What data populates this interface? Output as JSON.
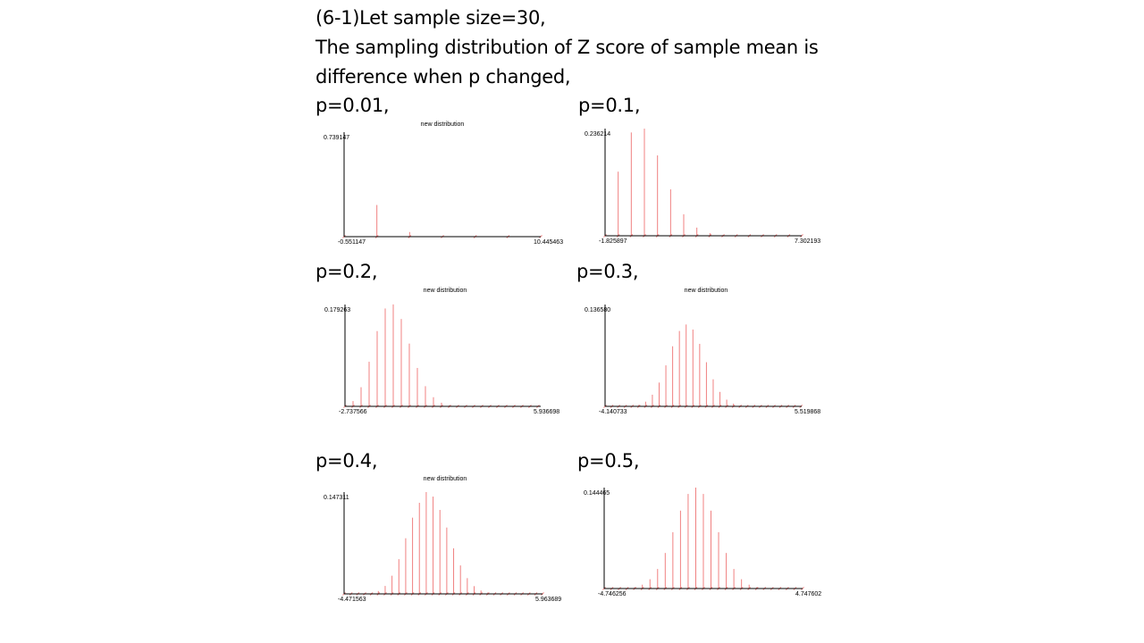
{
  "heading": {
    "line1": "(6-1)Let sample size=30,",
    "line2": "The sampling distribution of Z score of sample mean is",
    "line3": "difference when p changed,"
  },
  "colors": {
    "bar": "#f08080",
    "axis": "#000000"
  },
  "chart_data": [
    {
      "type": "bar",
      "label": "p=0.01,",
      "title": "new distribution",
      "xlim": [
        -0.551147,
        10.445463
      ],
      "ylim": [
        0,
        0.739147
      ],
      "x_min_label": "-0.551147",
      "x_max_label": "10.445463",
      "y_max_label": "0.739147",
      "x": [
        -0.551147,
        1.2816,
        3.1143,
        4.9471,
        6.7798,
        8.6125,
        10.4455
      ],
      "values": [
        0.7392,
        0.2241,
        0.0328,
        0.0031,
        0.0002,
        0.0,
        0.0
      ]
    },
    {
      "type": "bar",
      "label": "p=0.1,",
      "title": "",
      "xlim": [
        -1.825897,
        7.302193
      ],
      "ylim": [
        0,
        0.236214
      ],
      "x_min_label": "-1.825897",
      "x_max_label": "7.302193",
      "y_max_label": "0.236214",
      "x": [
        -1.8259,
        -1.2173,
        -0.6088,
        0.0,
        0.6088,
        1.2173,
        1.8259,
        2.4345,
        3.0431,
        3.6517,
        4.2603,
        4.8689,
        5.4775,
        6.0861,
        6.6947,
        7.3022
      ],
      "values": [
        0.0424,
        0.1413,
        0.2277,
        0.2361,
        0.1771,
        0.1023,
        0.0474,
        0.018,
        0.0058,
        0.0016,
        0.0004,
        0.0001,
        0.0,
        0.0,
        0.0,
        0.0
      ]
    },
    {
      "type": "bar",
      "label": "p=0.2,",
      "title": "new distribution",
      "xlim": [
        -2.737566,
        5.936698
      ],
      "ylim": [
        0,
        0.179263
      ],
      "x_min_label": "-2.737566",
      "x_max_label": "5.936698",
      "y_max_label": "0.179263",
      "x": [
        -2.7376,
        -2.3812,
        -2.0248,
        -1.6684,
        -1.312,
        -0.9556,
        -0.5992,
        -0.2428,
        0.1136,
        0.47,
        0.8264,
        1.1828,
        1.5392,
        1.8956,
        2.252,
        2.6084,
        2.9648,
        3.3212,
        3.6776,
        4.034,
        4.3904,
        4.7468,
        5.1032,
        5.4596,
        5.816
      ],
      "values": [
        0.0012,
        0.0093,
        0.0337,
        0.0785,
        0.1325,
        0.1723,
        0.1795,
        0.1538,
        0.1105,
        0.0676,
        0.0355,
        0.0161,
        0.0064,
        0.0022,
        0.0007,
        0.0002,
        0.0,
        0.0,
        0.0,
        0.0,
        0.0,
        0.0,
        0.0,
        0.0,
        0.0
      ]
    },
    {
      "type": "bar",
      "label": "p=0.3,",
      "title": "new distribution",
      "xlim": [
        -4.140733,
        5.519868
      ],
      "ylim": [
        0,
        0.13658
      ],
      "x_min_label": "-4.140733",
      "x_max_label": "5.519868",
      "y_max_label": "0.136580",
      "x": [
        -4.1407,
        -3.8087,
        -3.4767,
        -3.1447,
        -2.8127,
        -2.4807,
        -2.1487,
        -1.8167,
        -1.4847,
        -1.1527,
        -0.8207,
        -0.4887,
        -0.1567,
        0.1753,
        0.5073,
        0.8393,
        1.1713,
        1.5033,
        1.8353,
        2.1673,
        2.4993,
        2.8313,
        3.1633,
        3.4953,
        3.8273,
        4.1593,
        4.4913,
        4.8233,
        5.1553,
        5.4873
      ],
      "values": [
        0.0,
        0.0,
        0.0,
        0.0001,
        0.0005,
        0.002,
        0.0063,
        0.0156,
        0.0319,
        0.055,
        0.0806,
        0.1011,
        0.1098,
        0.103,
        0.0838,
        0.0592,
        0.0363,
        0.0194,
        0.009,
        0.0036,
        0.0012,
        0.0004,
        0.0001,
        0.0,
        0.0,
        0.0,
        0.0,
        0.0,
        0.0,
        0.0
      ]
    },
    {
      "type": "bar",
      "label": "p=0.4,",
      "title": "new distribution",
      "xlim": [
        -4.471563,
        5.963689
      ],
      "ylim": [
        0,
        0.147311
      ],
      "x_min_label": "-4.471563",
      "x_max_label": "5.963689",
      "y_max_label": "0.147311",
      "x": [
        -4.4716,
        -4.1116,
        -3.7516,
        -3.3916,
        -3.0316,
        -2.6716,
        -2.3116,
        -1.9516,
        -1.5916,
        -1.2316,
        -0.8716,
        -0.5116,
        -0.1516,
        0.2084,
        0.5684,
        0.9284,
        1.2884,
        1.6484,
        2.0084,
        2.3684,
        2.7284,
        3.0884,
        3.4484,
        3.8084,
        4.1684,
        4.5284,
        4.8884,
        5.2484,
        5.6084,
        5.9637
      ],
      "values": [
        0.0,
        0.0,
        0.0,
        0.0002,
        0.0012,
        0.0041,
        0.0115,
        0.0263,
        0.0502,
        0.0805,
        0.1103,
        0.1318,
        0.1473,
        0.1408,
        0.1215,
        0.096,
        0.0659,
        0.0412,
        0.0228,
        0.0112,
        0.0049,
        0.0019,
        0.0006,
        0.0002,
        0.0,
        0.0,
        0.0,
        0.0,
        0.0,
        0.0
      ]
    },
    {
      "type": "bar",
      "label": "p=0.5,",
      "title": "",
      "xlim": [
        -4.746256,
        4.747602
      ],
      "ylim": [
        0,
        0.144465
      ],
      "x_min_label": "-4.746256",
      "x_max_label": "4.747602",
      "y_max_label": "0.144465",
      "x": [
        -4.7463,
        -4.3811,
        -4.0159,
        -3.6507,
        -3.2855,
        -2.9203,
        -2.5551,
        -2.1899,
        -1.8247,
        -1.4595,
        -1.0943,
        -0.7291,
        -0.3639,
        0.0,
        0.3639,
        0.7291,
        1.0943,
        1.4595,
        1.8247,
        2.1899,
        2.5551,
        2.9203,
        3.2855,
        3.6507,
        4.0159,
        4.3811,
        4.7476
      ],
      "values": [
        0.0,
        0.0,
        0.0,
        0.0006,
        0.0019,
        0.0055,
        0.0133,
        0.028,
        0.0509,
        0.0806,
        0.1115,
        0.1354,
        0.1445,
        0.1354,
        0.1115,
        0.0806,
        0.0509,
        0.028,
        0.0133,
        0.0055,
        0.0019,
        0.0006,
        0.0002,
        0.0,
        0.0,
        0.0,
        0.0
      ]
    }
  ]
}
